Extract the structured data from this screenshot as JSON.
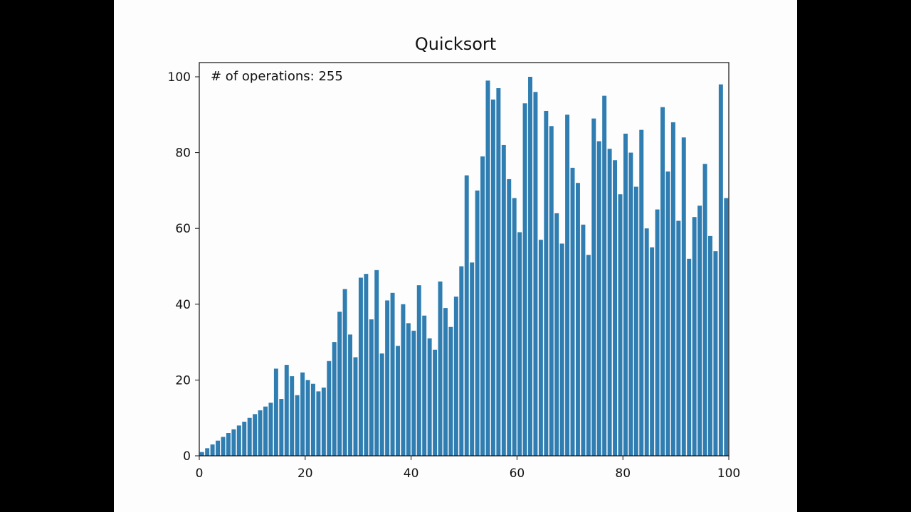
{
  "chart_data": {
    "type": "bar",
    "title": "Quicksort",
    "annotation": "# of operations: 255",
    "xlabel": "",
    "ylabel": "",
    "xlim": [
      0,
      100
    ],
    "ylim": [
      0,
      100
    ],
    "xticks": [
      0,
      20,
      40,
      60,
      80,
      100
    ],
    "yticks": [
      0,
      20,
      40,
      60,
      80,
      100
    ],
    "grid": false,
    "bar_color": "#2f7db1",
    "x": [
      0,
      1,
      2,
      3,
      4,
      5,
      6,
      7,
      8,
      9,
      10,
      11,
      12,
      13,
      14,
      15,
      16,
      17,
      18,
      19,
      20,
      21,
      22,
      23,
      24,
      25,
      26,
      27,
      28,
      29,
      30,
      31,
      32,
      33,
      34,
      35,
      36,
      37,
      38,
      39,
      40,
      41,
      42,
      43,
      44,
      45,
      46,
      47,
      48,
      49,
      50,
      51,
      52,
      53,
      54,
      55,
      56,
      57,
      58,
      59,
      60,
      61,
      62,
      63,
      64,
      65,
      66,
      67,
      68,
      69,
      70,
      71,
      72,
      73,
      74,
      75,
      76,
      77,
      78,
      79,
      80,
      81,
      82,
      83,
      84,
      85,
      86,
      87,
      88,
      89,
      90,
      91,
      92,
      93,
      94,
      95,
      96,
      97,
      98,
      99
    ],
    "values": [
      1,
      2,
      3,
      4,
      5,
      6,
      7,
      8,
      9,
      10,
      11,
      12,
      13,
      14,
      23,
      15,
      24,
      21,
      16,
      22,
      20,
      19,
      17,
      18,
      25,
      30,
      38,
      44,
      32,
      26,
      47,
      48,
      36,
      49,
      27,
      41,
      43,
      29,
      40,
      35,
      33,
      45,
      37,
      31,
      28,
      46,
      39,
      34,
      42,
      50,
      74,
      51,
      70,
      79,
      99,
      94,
      97,
      82,
      73,
      68,
      59,
      93,
      100,
      96,
      57,
      91,
      87,
      64,
      56,
      90,
      76,
      72,
      61,
      53,
      89,
      83,
      95,
      81,
      78,
      69,
      85,
      80,
      71,
      86,
      60,
      55,
      65,
      92,
      75,
      88,
      62,
      84,
      52,
      63,
      66,
      77,
      58,
      54,
      98,
      68
    ]
  }
}
